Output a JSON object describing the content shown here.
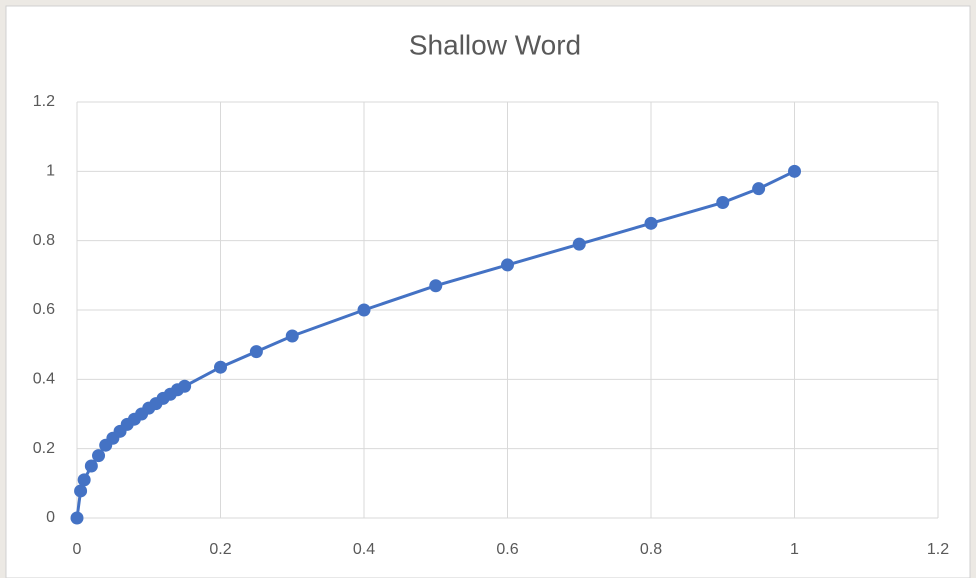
{
  "chart_data": {
    "type": "scatter-line",
    "title": "Shallow Word",
    "x": [
      0,
      0.005,
      0.01,
      0.02,
      0.03,
      0.04,
      0.05,
      0.06,
      0.07,
      0.08,
      0.09,
      0.1,
      0.11,
      0.12,
      0.13,
      0.14,
      0.15,
      0.2,
      0.25,
      0.3,
      0.4,
      0.5,
      0.6,
      0.7,
      0.8,
      0.9,
      0.95,
      1
    ],
    "values": [
      0,
      0.078,
      0.11,
      0.15,
      0.18,
      0.21,
      0.23,
      0.25,
      0.27,
      0.285,
      0.3,
      0.317,
      0.33,
      0.345,
      0.357,
      0.37,
      0.38,
      0.435,
      0.48,
      0.525,
      0.6,
      0.67,
      0.73,
      0.79,
      0.85,
      0.91,
      0.95,
      1
    ],
    "color": "#4472c4",
    "xlim": [
      0,
      1.2
    ],
    "xticks": [
      0,
      0.2,
      0.4,
      0.6,
      0.8,
      1,
      1.2
    ],
    "ylim": [
      0,
      1.2
    ],
    "yticks": [
      0,
      0.2,
      0.4,
      0.6,
      0.8,
      1,
      1.2
    ],
    "grid": true
  }
}
